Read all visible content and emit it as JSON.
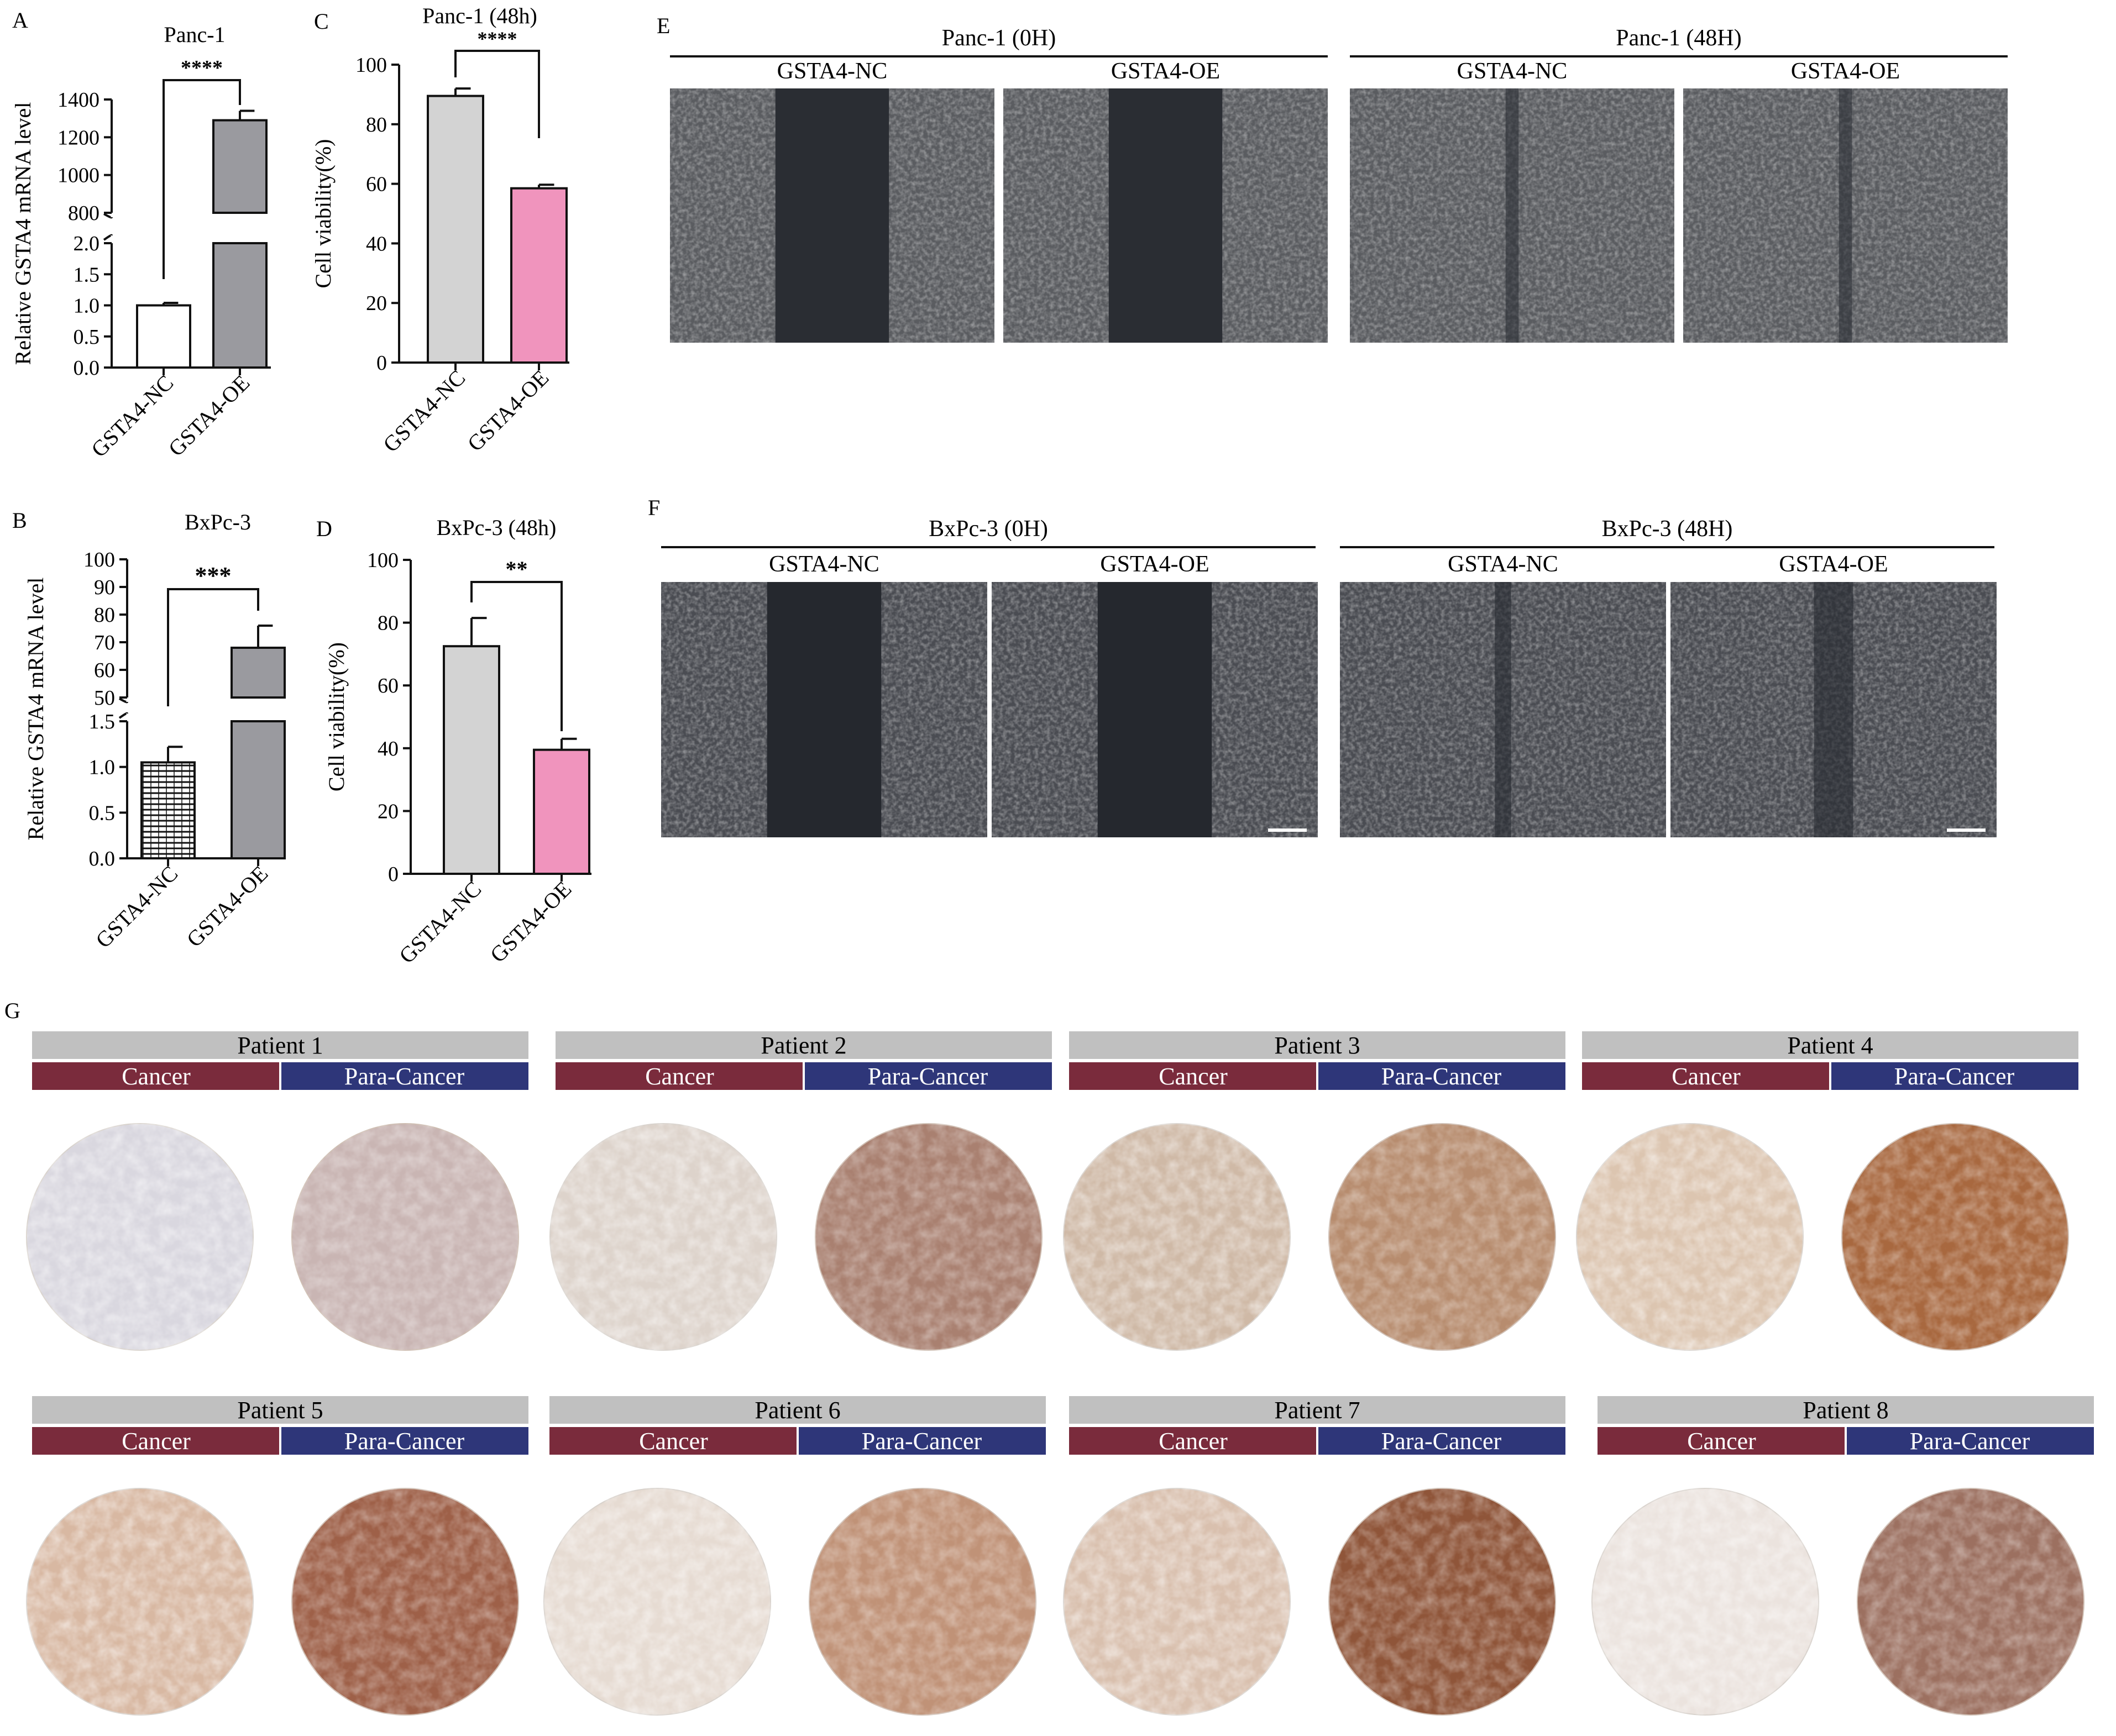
{
  "chart_data": [
    {
      "panel": "A",
      "type": "bar",
      "title": "Panc-1",
      "ylabel": "Relative GSTA4 mRNA level",
      "categories": [
        "GSTA4-NC",
        "GSTA4-OE"
      ],
      "values": [
        1.0,
        1290
      ],
      "errors": [
        0.04,
        50
      ],
      "axis_break": {
        "lower": [
          0,
          2.0
        ],
        "upper": [
          800,
          1400
        ]
      },
      "yticks_lower": [
        "0.0",
        "0.5",
        "1.0",
        "1.5",
        "2.0"
      ],
      "yticks_upper": [
        "800",
        "1000",
        "1200",
        "1400"
      ],
      "significance": "****",
      "colors": [
        "#ffffff",
        "#9a9a9f"
      ]
    },
    {
      "panel": "B",
      "type": "bar",
      "title": "BxPc-3",
      "ylabel": "Relative GSTA4 mRNA level",
      "categories": [
        "GSTA4-NC",
        "GSTA4-OE"
      ],
      "values": [
        1.05,
        68
      ],
      "errors": [
        0.17,
        8
      ],
      "axis_break": {
        "lower": [
          0,
          1.5
        ],
        "upper": [
          50,
          100
        ]
      },
      "yticks_lower": [
        "0.0",
        "0.5",
        "1.0",
        "1.5"
      ],
      "yticks_upper": [
        "50",
        "60",
        "70",
        "80",
        "90",
        "100"
      ],
      "significance": "***",
      "colors": [
        "#ffffff",
        "#9a9a9f"
      ]
    },
    {
      "panel": "C",
      "type": "bar",
      "title": "Panc-1 (48h)",
      "ylabel": "Cell viability(%)",
      "categories": [
        "GSTA4-NC",
        "GSTA4-OE"
      ],
      "values": [
        89.5,
        58.5
      ],
      "errors": [
        2.5,
        1.2
      ],
      "ylim": [
        0,
        100
      ],
      "yticks": [
        "0",
        "20",
        "40",
        "60",
        "80",
        "100"
      ],
      "significance": "****",
      "colors": [
        "#d3d3d3",
        "#f094bd"
      ]
    },
    {
      "panel": "D",
      "type": "bar",
      "title": "BxPc-3 (48h)",
      "ylabel": "Cell viability(%)",
      "categories": [
        "GSTA4-NC",
        "GSTA4-OE"
      ],
      "values": [
        72.5,
        39.5
      ],
      "errors": [
        9,
        3.5
      ],
      "ylim": [
        0,
        100
      ],
      "yticks": [
        "0",
        "20",
        "40",
        "60",
        "80",
        "100"
      ],
      "significance": "**",
      "colors": [
        "#d3d3d3",
        "#f094bd"
      ]
    }
  ],
  "panel_letters": [
    "A",
    "B",
    "C",
    "D",
    "E",
    "F",
    "G"
  ],
  "wound_panels": [
    {
      "panel": "E",
      "groups": [
        {
          "title": "Panc-1 (0H)",
          "labels": [
            "GSTA4-NC",
            "GSTA4-OE"
          ]
        },
        {
          "title": "Panc-1 (48H)",
          "labels": [
            "GSTA4-NC",
            "GSTA4-OE"
          ]
        }
      ]
    },
    {
      "panel": "F",
      "groups": [
        {
          "title": "BxPc-3 (0H)",
          "labels": [
            "GSTA4-NC",
            "GSTA4-OE"
          ]
        },
        {
          "title": "BxPc-3 (48H)",
          "labels": [
            "GSTA4-NC",
            "GSTA4-OE"
          ]
        }
      ]
    }
  ],
  "ihc": {
    "cancer_label": "Cancer",
    "para_label": "Para-Cancer",
    "patients": [
      "Patient 1",
      "Patient 2",
      "Patient 3",
      "Patient 4",
      "Patient 5",
      "Patient 6",
      "Patient 7",
      "Patient 8"
    ],
    "colors": {
      "header": "#c0c0c0",
      "cancer": "#7a2b3c",
      "para": "#2e3679"
    }
  }
}
